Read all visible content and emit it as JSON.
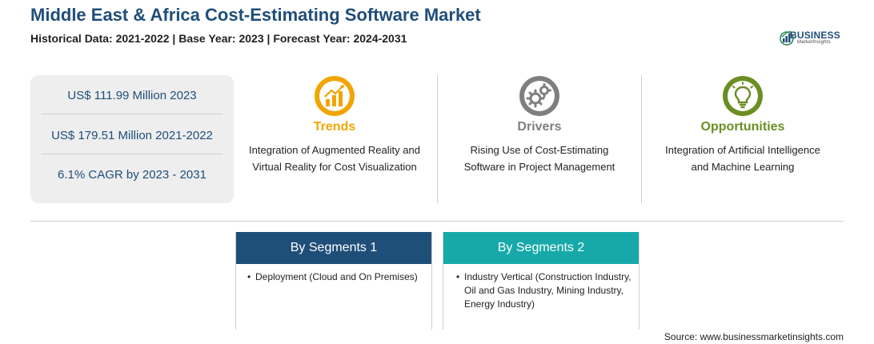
{
  "header": {
    "title": "Middle East & Africa Cost-Estimating Software Market",
    "subtitle": "Historical Data: 2021-2022 | Base Year: 2023 | Forecast Year: 2024-2031"
  },
  "logo": {
    "main": "BUSINESS",
    "sub": "MarketInsights"
  },
  "stats": [
    "US$ 111.99 Million 2023",
    "US$ 179.51 Million 2021-2022",
    "6.1% CAGR by 2023 - 2031"
  ],
  "columns": {
    "trends": {
      "heading": "Trends",
      "text_line1": "Integration of Augmented Reality and",
      "text_line2": "Virtual Reality for Cost Visualization",
      "color": "#f0a500",
      "icon": "growth-chart-icon"
    },
    "drivers": {
      "heading": "Drivers",
      "text_line1": "Rising Use of Cost-Estimating",
      "text_line2": "Software in Project Management",
      "color": "#7f7f7f",
      "icon": "gears-icon"
    },
    "opportunities": {
      "heading": "Opportunities",
      "text_line1": "Integration of Artificial Intelligence",
      "text_line2": "and Machine Learning",
      "color": "#6b8e23",
      "icon": "lightbulb-icon"
    }
  },
  "segments": {
    "seg1": {
      "title": "By Segments 1",
      "item": "Deployment (Cloud and On Premises)",
      "color": "#1f4e79"
    },
    "seg2": {
      "title": "By Segments 2",
      "item": "Industry Vertical (Construction Industry, Oil and Gas Industry, Mining Industry, Energy Industry)",
      "color": "#17a9a9"
    }
  },
  "bullet": "•",
  "source": "Source: www.businessmarketinsights.com"
}
